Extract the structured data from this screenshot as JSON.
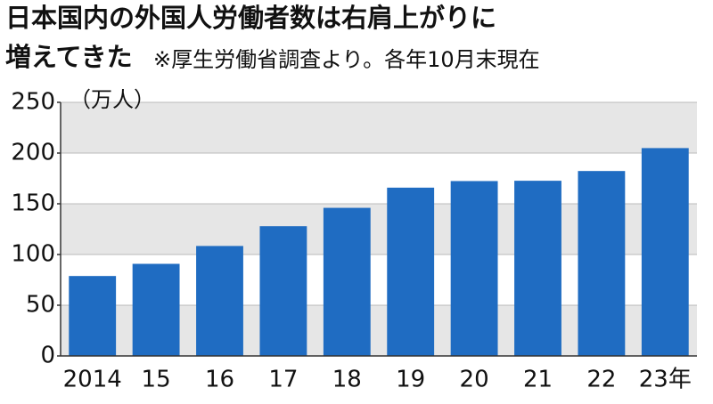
{
  "chart_data": {
    "type": "bar",
    "title": [
      "日本国内の外国人労働者数は右肩上がりに",
      "増えてきた"
    ],
    "subtitle": "※厚生労働省調査より。各年10月末現在",
    "y_label": "（万人）",
    "categories": [
      "2014",
      "15",
      "16",
      "17",
      "18",
      "19",
      "20",
      "21",
      "22",
      "23年"
    ],
    "values": [
      78.8,
      90.8,
      108.4,
      127.9,
      146.0,
      165.9,
      172.4,
      172.7,
      182.3,
      204.9
    ],
    "color": "#1f6cc2",
    "ylim": [
      0,
      250
    ],
    "yticks": [
      0,
      50,
      100,
      150,
      200,
      250
    ],
    "grid": true
  }
}
